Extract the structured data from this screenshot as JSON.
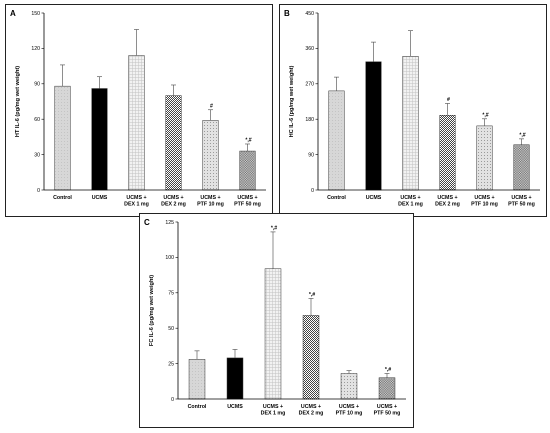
{
  "patterns": [
    "dots-light",
    "solid-black",
    "grid-fine",
    "check-dense",
    "dots-medium",
    "check-coarse"
  ],
  "colors": {
    "light_fill": "#d7d7d7",
    "black_fill": "#000000",
    "axis": "#000000",
    "background": "#ffffff"
  },
  "chart_data": [
    {
      "id": "A",
      "type": "bar",
      "panel_label": "A",
      "ylabel": "HT IL-6 (pg/mg wet weight)",
      "ylim": [
        0,
        150
      ],
      "yticks": [
        0,
        30,
        60,
        90,
        120,
        150
      ],
      "categories": [
        [
          "Control"
        ],
        [
          "UCMS"
        ],
        [
          "UCMS +",
          "DEX 1 mg"
        ],
        [
          "UCMS +",
          "DEX 2 mg"
        ],
        [
          "UCMS +",
          "PTF 10 mg"
        ],
        [
          "UCMS +",
          "PTF 50 mg"
        ]
      ],
      "values": [
        88,
        86,
        114,
        80,
        59,
        33
      ],
      "error": [
        18,
        10,
        22,
        9,
        9,
        6
      ],
      "significance": [
        "",
        "",
        "",
        "",
        "#",
        "*,#"
      ]
    },
    {
      "id": "B",
      "type": "bar",
      "panel_label": "B",
      "ylabel": "HC IL-6 (pg/mg wet weight)",
      "ylim": [
        0,
        450
      ],
      "yticks": [
        0,
        90,
        180,
        270,
        360,
        450
      ],
      "categories": [
        [
          "Control"
        ],
        [
          "UCMS"
        ],
        [
          "UCMS +",
          "DEX 1 mg"
        ],
        [
          "UCMS +",
          "DEX 2 mg"
        ],
        [
          "UCMS +",
          "PTF 10 mg"
        ],
        [
          "UCMS +",
          "PTF 50 mg"
        ]
      ],
      "values": [
        252,
        326,
        340,
        190,
        163,
        115
      ],
      "error": [
        35,
        50,
        65,
        30,
        18,
        15
      ],
      "significance": [
        "",
        "",
        "",
        "#",
        "*,#",
        "*,#"
      ]
    },
    {
      "id": "C",
      "type": "bar",
      "panel_label": "C",
      "ylabel": "FC IL-6 (pg/mg wet weight)",
      "ylim": [
        0,
        125
      ],
      "yticks": [
        0,
        25,
        50,
        75,
        100,
        125
      ],
      "categories": [
        [
          "Control"
        ],
        [
          "UCMS"
        ],
        [
          "UCMS +",
          "DEX 1 mg"
        ],
        [
          "UCMS +",
          "DEX 2 mg"
        ],
        [
          "UCMS +",
          "PTF 10 mg"
        ],
        [
          "UCMS +",
          "PTF 50 mg"
        ]
      ],
      "values": [
        28,
        29,
        92,
        59,
        18,
        15
      ],
      "error": [
        6,
        6,
        26,
        12,
        2,
        3
      ],
      "significance": [
        "",
        "",
        "*,#",
        "*,#",
        "",
        "*,#"
      ]
    }
  ]
}
